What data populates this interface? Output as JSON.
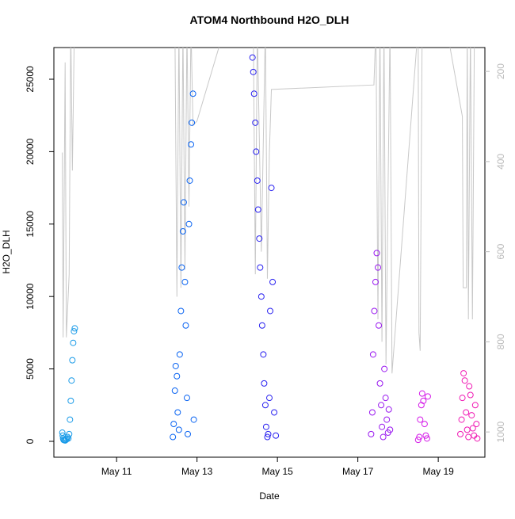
{
  "chart_data": {
    "type": "scatter",
    "title": "ATOM4 Northbound H2O_DLH",
    "x_label": "Date",
    "y_label": "H2O_DLH",
    "xlim": [
      9.44,
      20.16
    ],
    "ylim": [
      -1094,
      27188
    ],
    "y2lim": [
      1056,
      147
    ],
    "xticks": [
      {
        "value": 11,
        "label": "May 11"
      },
      {
        "value": 13,
        "label": "May 13"
      },
      {
        "value": 15,
        "label": "May 15"
      },
      {
        "value": 17,
        "label": "May 17"
      },
      {
        "value": 19,
        "label": "May 19"
      }
    ],
    "yticks": [
      0,
      5000,
      10000,
      15000,
      20000,
      25000
    ],
    "y2ticks": [
      200,
      400,
      600,
      800,
      1000
    ],
    "series": [
      {
        "color": "#1a9be8",
        "x": [
          9.65,
          9.66,
          9.67,
          9.68,
          9.7,
          9.72,
          9.74,
          9.76,
          9.78,
          9.8,
          9.82,
          9.84,
          9.86,
          9.88,
          9.9,
          9.92,
          9.94,
          9.96
        ],
        "values": [
          600,
          400,
          200,
          100,
          80,
          60,
          100,
          150,
          300,
          200,
          500,
          1500,
          2800,
          4200,
          5600,
          6800,
          7600,
          7800
        ]
      },
      {
        "color": "#0a64f2",
        "x": [
          12.4,
          12.42,
          12.45,
          12.47,
          12.5,
          12.52,
          12.55,
          12.57,
          12.6,
          12.62,
          12.65,
          12.67,
          12.7,
          12.72,
          12.75,
          12.77,
          12.8,
          12.82,
          12.85,
          12.87,
          12.9,
          12.92
        ],
        "values": [
          300,
          1200,
          3500,
          5200,
          4500,
          2000,
          800,
          6000,
          9000,
          12000,
          14500,
          16500,
          11000,
          8000,
          3000,
          500,
          15000,
          18000,
          20500,
          22000,
          24000,
          1500
        ]
      },
      {
        "color": "#2a22f0",
        "x": [
          14.38,
          14.4,
          14.42,
          14.45,
          14.47,
          14.5,
          14.52,
          14.55,
          14.57,
          14.6,
          14.62,
          14.65,
          14.67,
          14.7,
          14.72,
          14.75,
          14.77,
          14.8,
          14.82,
          14.85,
          14.88,
          14.92,
          14.96
        ],
        "values": [
          26500,
          25500,
          24000,
          22000,
          20000,
          18000,
          16000,
          14000,
          12000,
          10000,
          8000,
          6000,
          4000,
          2500,
          1000,
          300,
          500,
          3000,
          9000,
          17500,
          11000,
          2000,
          400
        ]
      },
      {
        "color": "#9a1af0",
        "x": [
          17.33,
          17.36,
          17.38,
          17.41,
          17.44,
          17.47,
          17.5,
          17.52,
          17.55,
          17.58,
          17.6,
          17.63,
          17.66,
          17.69,
          17.72,
          17.75,
          17.77,
          17.8
        ],
        "values": [
          500,
          2000,
          6000,
          9000,
          11000,
          13000,
          12000,
          8000,
          4000,
          2500,
          1000,
          300,
          5000,
          3000,
          1500,
          600,
          2200,
          800
        ]
      },
      {
        "color": "#d41ae8",
        "x": [
          18.5,
          18.53,
          18.55,
          18.58,
          18.6,
          18.63,
          18.66,
          18.69,
          18.72,
          18.74
        ],
        "values": [
          100,
          300,
          1500,
          2500,
          3300,
          2800,
          1200,
          400,
          200,
          3100
        ]
      },
      {
        "color": "#f01ab4",
        "x": [
          19.55,
          19.58,
          19.6,
          19.63,
          19.66,
          19.69,
          19.72,
          19.75,
          19.77,
          19.8,
          19.83,
          19.86,
          19.89,
          19.92,
          19.95,
          19.97
        ],
        "values": [
          500,
          1500,
          3000,
          4700,
          4200,
          2000,
          800,
          300,
          3800,
          3200,
          1800,
          900,
          400,
          2500,
          1200,
          200
        ]
      },
      {
        "type": "line",
        "axis": "y2",
        "color": "#c8c8c8",
        "x": [
          9.65,
          9.67,
          9.72,
          9.75,
          9.82,
          9.86,
          9.9,
          9.95,
          12.45,
          12.5,
          12.55,
          12.6,
          12.65,
          12.7,
          12.75,
          12.8,
          12.85,
          12.9,
          13.0,
          13.7,
          14.4,
          14.45,
          14.5,
          14.6,
          14.7,
          14.75,
          14.8,
          14.85,
          17.4,
          17.45,
          17.5,
          17.55,
          17.6,
          17.65,
          17.7,
          17.8,
          17.85,
          18.5,
          18.52,
          18.55,
          18.6,
          19.2,
          19.6,
          19.62,
          19.7,
          19.72,
          19.75,
          19.8,
          19.85,
          19.9
        ],
        "values": [
          380,
          790,
          180,
          790,
          650,
          100,
          420,
          100,
          100,
          700,
          100,
          680,
          100,
          640,
          100,
          500,
          100,
          320,
          310,
          100,
          100,
          650,
          100,
          600,
          100,
          660,
          380,
          240,
          230,
          100,
          750,
          100,
          800,
          100,
          850,
          100,
          870,
          100,
          780,
          820,
          100,
          100,
          300,
          680,
          680,
          100,
          750,
          100,
          750,
          100
        ]
      }
    ]
  }
}
